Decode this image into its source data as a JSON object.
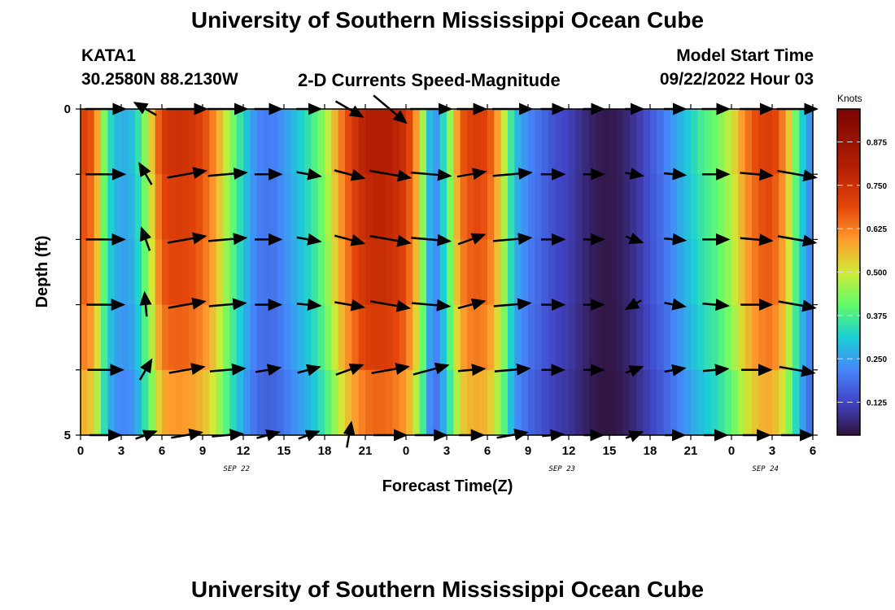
{
  "header": {
    "title": "University of Southern Mississippi Ocean Cube",
    "station": "KATA1",
    "coords": "30.2580N  88.2130W",
    "subtitle": "2-D Currents Speed-Magnitude",
    "model_start_label": "Model Start Time",
    "model_start_value": "09/22/2022 Hour 03",
    "footer_title": "University of Southern Mississippi Ocean Cube"
  },
  "chart_data": {
    "type": "heatmap",
    "title": "2-D Currents Speed-Magnitude",
    "xlabel": "Forecast Time(Z)",
    "ylabel": "Depth (ft)",
    "x_tick_labels": [
      "0",
      "3",
      "6",
      "9",
      "12",
      "15",
      "18",
      "21",
      "0",
      "3",
      "6",
      "9",
      "12",
      "15",
      "18",
      "21",
      "0",
      "3",
      "6"
    ],
    "date_labels": [
      {
        "label": "SEP 22",
        "at_hour": 11.5
      },
      {
        "label": "SEP 23",
        "at_hour": 35.5
      },
      {
        "label": "SEP 24",
        "at_hour": 50.5
      }
    ],
    "y_tick_labels": [
      {
        "value": 0,
        "label": "0"
      },
      {
        "value": 5,
        "label": "5"
      }
    ],
    "xlim": [
      0,
      54
    ],
    "ylim": [
      0,
      5
    ],
    "colorbar": {
      "label": "Knots",
      "range": [
        0.03,
        0.97
      ],
      "ticks": [
        "0.125",
        "0.250",
        "0.375",
        "0.500",
        "0.625",
        "0.750",
        "0.875"
      ],
      "tick_values": [
        0.125,
        0.25,
        0.375,
        0.5,
        0.625,
        0.75,
        0.875
      ]
    },
    "speed_profile_hours": [
      0,
      1,
      2,
      3,
      4,
      5,
      6,
      7,
      8,
      9,
      10,
      11,
      12,
      13,
      14,
      15,
      16,
      17,
      18,
      19,
      20,
      21,
      22,
      23,
      24,
      25,
      26,
      27,
      28,
      29,
      30,
      31,
      32,
      33,
      34,
      35,
      36,
      37,
      38,
      39,
      40,
      41,
      42,
      43,
      44,
      45,
      46,
      47,
      48,
      49,
      50,
      51,
      52,
      53,
      54
    ],
    "speed_profile_knots": [
      0.72,
      0.66,
      0.35,
      0.26,
      0.3,
      0.48,
      0.72,
      0.75,
      0.74,
      0.7,
      0.6,
      0.45,
      0.32,
      0.22,
      0.2,
      0.24,
      0.3,
      0.36,
      0.45,
      0.6,
      0.72,
      0.8,
      0.82,
      0.8,
      0.74,
      0.55,
      0.2,
      0.38,
      0.66,
      0.72,
      0.7,
      0.55,
      0.3,
      0.22,
      0.18,
      0.14,
      0.12,
      0.08,
      0.05,
      0.04,
      0.06,
      0.1,
      0.15,
      0.2,
      0.26,
      0.32,
      0.38,
      0.42,
      0.5,
      0.62,
      0.7,
      0.72,
      0.6,
      0.35,
      0.2
    ],
    "depth_factors": [
      1.0,
      0.96,
      0.93,
      0.88,
      0.8,
      0.62
    ],
    "vector_hours": [
      0,
      3,
      6,
      9,
      12,
      15,
      18,
      21,
      24,
      27,
      30,
      33,
      36,
      39,
      42,
      45,
      48,
      51
    ],
    "vector_depths_ft": [
      0,
      1,
      2,
      3,
      4,
      5
    ],
    "vector_angles_deg": [
      [
        0,
        150,
        0,
        0,
        0,
        0,
        -30,
        -40,
        0,
        0,
        0,
        0,
        0,
        0,
        0,
        0,
        0,
        0
      ],
      [
        0,
        120,
        10,
        5,
        0,
        -10,
        -15,
        -10,
        -5,
        10,
        5,
        0,
        0,
        -10,
        -5,
        0,
        -5,
        -10
      ],
      [
        0,
        110,
        10,
        5,
        0,
        -10,
        -15,
        -10,
        -5,
        20,
        5,
        0,
        0,
        -20,
        -5,
        0,
        -5,
        -10
      ],
      [
        0,
        95,
        10,
        5,
        0,
        -5,
        -10,
        -10,
        -5,
        15,
        5,
        0,
        0,
        -150,
        -10,
        -5,
        0,
        -10
      ],
      [
        0,
        60,
        10,
        5,
        10,
        15,
        20,
        10,
        15,
        5,
        5,
        0,
        0,
        20,
        10,
        5,
        0,
        -10
      ],
      [
        0,
        20,
        10,
        5,
        15,
        20,
        80,
        0,
        0,
        0,
        10,
        5,
        0,
        20,
        0,
        0,
        0,
        0
      ]
    ]
  }
}
